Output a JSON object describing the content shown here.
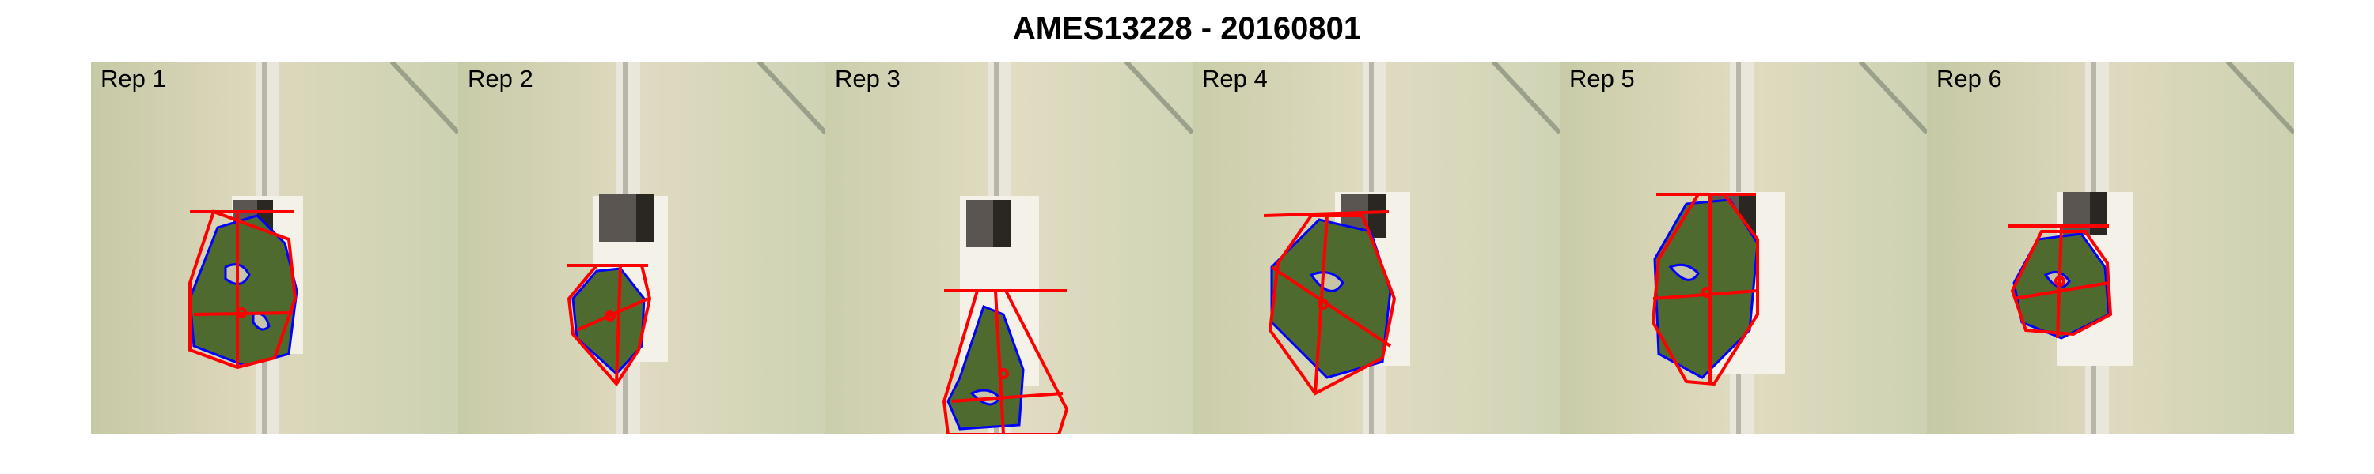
{
  "title": "AMES13228 - 20160801",
  "colors": {
    "hull": "#ff0000",
    "contour": "#0000ff",
    "plant": "#4e6a2e",
    "background_left": "#c9ccaa",
    "background_right": "#e4ddc4"
  },
  "panels": [
    {
      "label": "Rep 1"
    },
    {
      "label": "Rep 2"
    },
    {
      "label": "Rep 3"
    },
    {
      "label": "Rep 4"
    },
    {
      "label": "Rep 5"
    },
    {
      "label": "Rep 6"
    }
  ]
}
